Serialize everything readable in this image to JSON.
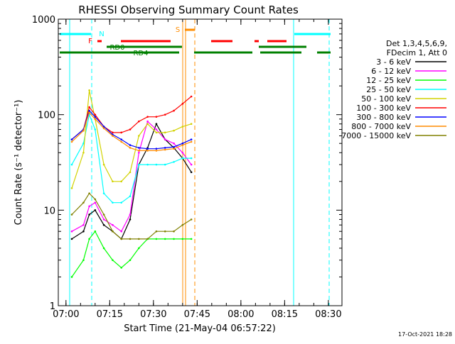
{
  "chart_data": {
    "type": "line",
    "title": "RHESSI Observing Summary Count Rates",
    "xlabel": "Start Time (21-May-04 06:57:22)",
    "ylabel": "Count Rate (s⁻¹ detector⁻¹)",
    "yscale": "log",
    "ylim": [
      1,
      1000
    ],
    "xlim": [
      "06:57:22",
      "08:34:40"
    ],
    "x_ticks": [
      "07:00",
      "07:15",
      "07:30",
      "07:45",
      "08:00",
      "08:15",
      "08:30"
    ],
    "y_ticks": [
      {
        "value": 1,
        "label": "1"
      },
      {
        "value": 10,
        "label": "10"
      },
      {
        "value": 100,
        "label": "100"
      },
      {
        "value": 1000,
        "label": "1000"
      }
    ],
    "legend_header": [
      "Det 1,3,4,5,6,9,",
      "FDecim 1, Att 0"
    ],
    "legend_position": "right",
    "footer_date": "17-Oct-2021 18:28",
    "series": [
      {
        "name": "3 - 6 keV",
        "color": "#000000",
        "x": [
          "07:02",
          "07:06",
          "07:08",
          "07:10",
          "07:13",
          "07:16",
          "07:19",
          "07:22",
          "07:25",
          "07:28",
          "07:31",
          "07:34",
          "07:37",
          "07:40",
          "07:43"
        ],
        "values": [
          5,
          6,
          9,
          10,
          7,
          6,
          5,
          8,
          30,
          45,
          80,
          55,
          45,
          35,
          25
        ]
      },
      {
        "name": "6 - 12 keV",
        "color": "#ff00ff",
        "x": [
          "07:02",
          "07:06",
          "07:08",
          "07:10",
          "07:13",
          "07:16",
          "07:19",
          "07:22",
          "07:25",
          "07:28",
          "07:31",
          "07:34",
          "07:37",
          "07:40",
          "07:43"
        ],
        "values": [
          6,
          7,
          11,
          12,
          8,
          7,
          6,
          9,
          40,
          85,
          70,
          55,
          50,
          40,
          30
        ]
      },
      {
        "name": "12 - 25 keV",
        "color": "#00ff00",
        "x": [
          "07:02",
          "07:06",
          "07:08",
          "07:10",
          "07:13",
          "07:16",
          "07:19",
          "07:22",
          "07:25",
          "07:28",
          "07:31",
          "07:34",
          "07:37",
          "07:40",
          "07:43"
        ],
        "values": [
          2,
          3,
          5,
          6,
          4,
          3,
          2.5,
          3,
          4,
          5,
          5,
          5,
          5,
          5,
          5
        ]
      },
      {
        "name": "25 - 50 keV",
        "color": "#00ffff",
        "x": [
          "07:02",
          "07:06",
          "07:08",
          "07:10",
          "07:13",
          "07:16",
          "07:19",
          "07:22",
          "07:25",
          "07:28",
          "07:31",
          "07:34",
          "07:37",
          "07:40",
          "07:43"
        ],
        "values": [
          30,
          50,
          100,
          70,
          15,
          12,
          12,
          14,
          30,
          30,
          30,
          30,
          32,
          35,
          35
        ]
      },
      {
        "name": "50 - 100 keV",
        "color": "#d2d200",
        "x": [
          "07:02",
          "07:06",
          "07:08",
          "07:10",
          "07:13",
          "07:16",
          "07:19",
          "07:22",
          "07:25",
          "07:28",
          "07:31",
          "07:34",
          "07:37",
          "07:40",
          "07:43"
        ],
        "values": [
          17,
          40,
          180,
          90,
          30,
          20,
          20,
          25,
          60,
          80,
          65,
          65,
          68,
          75,
          80
        ]
      },
      {
        "name": "100 - 300 keV",
        "color": "#ff0000",
        "x": [
          "07:02",
          "07:06",
          "07:08",
          "07:10",
          "07:13",
          "07:16",
          "07:19",
          "07:22",
          "07:25",
          "07:28",
          "07:31",
          "07:34",
          "07:37",
          "07:40",
          "07:43"
        ],
        "values": [
          55,
          70,
          120,
          100,
          75,
          65,
          65,
          70,
          85,
          95,
          95,
          100,
          110,
          130,
          155
        ]
      },
      {
        "name": "300 - 800 keV",
        "color": "#0000ff",
        "x": [
          "07:02",
          "07:06",
          "07:08",
          "07:10",
          "07:13",
          "07:16",
          "07:19",
          "07:22",
          "07:25",
          "07:28",
          "07:31",
          "07:34",
          "07:37",
          "07:40",
          "07:43"
        ],
        "values": [
          55,
          70,
          110,
          95,
          75,
          62,
          55,
          48,
          45,
          44,
          44,
          45,
          46,
          50,
          55
        ]
      },
      {
        "name": "800 - 7000 keV",
        "color": "#ff8c00",
        "x": [
          "07:02",
          "07:06",
          "07:08",
          "07:10",
          "07:13",
          "07:16",
          "07:19",
          "07:22",
          "07:25",
          "07:28",
          "07:31",
          "07:34",
          "07:37",
          "07:40",
          "07:43"
        ],
        "values": [
          52,
          68,
          105,
          90,
          72,
          60,
          52,
          45,
          42,
          42,
          42,
          43,
          44,
          48,
          52
        ]
      },
      {
        "name": "7000 - 15000 keV",
        "color": "#808000",
        "x": [
          "07:02",
          "07:06",
          "07:08",
          "07:10",
          "07:13",
          "07:16",
          "07:19",
          "07:22",
          "07:25",
          "07:28",
          "07:31",
          "07:34",
          "07:37",
          "07:40",
          "07:43"
        ],
        "values": [
          9,
          12,
          15,
          13,
          9,
          6,
          5,
          5,
          5,
          5,
          6,
          6,
          6,
          7,
          8
        ]
      }
    ],
    "flag_labels": [
      {
        "label": "N",
        "color": "#00ffff"
      },
      {
        "label": "F",
        "color": "#ff0000"
      },
      {
        "label": "S",
        "color": "#ff8c00"
      },
      {
        "label": "RD0",
        "color": "#008000"
      },
      {
        "label": "RD4",
        "color": "#008000"
      }
    ]
  }
}
